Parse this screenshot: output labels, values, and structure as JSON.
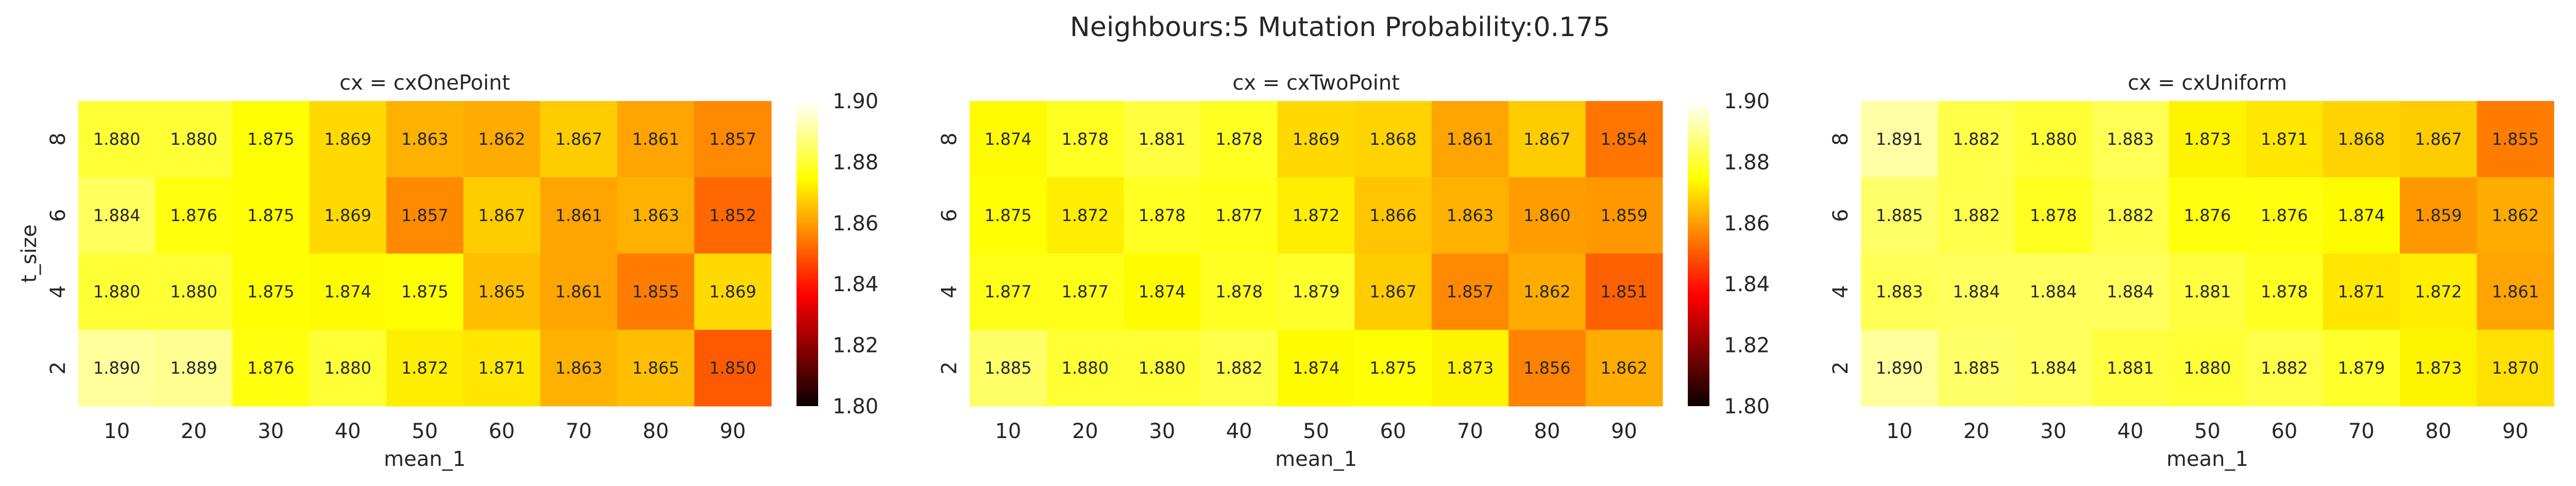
{
  "suptitle": "Neighbours:5 Mutation Probability:0.175",
  "chart_data": {
    "type": "heatmap",
    "colormap": "hot",
    "x_categories": [
      "10",
      "20",
      "30",
      "40",
      "50",
      "60",
      "70",
      "80",
      "90"
    ],
    "y_categories": [
      "8",
      "6",
      "4",
      "2"
    ],
    "colorbar_ticks": [
      "1.90",
      "1.88",
      "1.86",
      "1.84",
      "1.82",
      "1.80"
    ],
    "vmin": 1.8,
    "vmax": 1.9,
    "panels": [
      {
        "title": "cx = cxOnePoint",
        "xlabel": "mean_1",
        "ylabel": "t_size",
        "values": [
          [
            1.88,
            1.88,
            1.875,
            1.869,
            1.863,
            1.862,
            1.867,
            1.861,
            1.857
          ],
          [
            1.884,
            1.876,
            1.875,
            1.869,
            1.857,
            1.867,
            1.861,
            1.863,
            1.852
          ],
          [
            1.88,
            1.88,
            1.875,
            1.874,
            1.875,
            1.865,
            1.861,
            1.855,
            1.869
          ],
          [
            1.89,
            1.889,
            1.876,
            1.88,
            1.872,
            1.871,
            1.863,
            1.865,
            1.85
          ]
        ],
        "labels": [
          [
            "1.880",
            "1.880",
            "1.875",
            "1.869",
            "1.863",
            "1.862",
            "1.867",
            "1.861",
            "1.857"
          ],
          [
            "1.884",
            "1.876",
            "1.875",
            "1.869",
            "1.857",
            "1.867",
            "1.861",
            "1.863",
            "1.852"
          ],
          [
            "1.880",
            "1.880",
            "1.875",
            "1.874",
            "1.875",
            "1.865",
            "1.861",
            "1.855",
            "1.869"
          ],
          [
            "1.890",
            "1.889",
            "1.876",
            "1.880",
            "1.872",
            "1.871",
            "1.863",
            "1.865",
            "1.850"
          ]
        ]
      },
      {
        "title": "cx = cxTwoPoint",
        "xlabel": "mean_1",
        "ylabel": "",
        "values": [
          [
            1.874,
            1.878,
            1.881,
            1.878,
            1.869,
            1.868,
            1.861,
            1.867,
            1.854
          ],
          [
            1.875,
            1.872,
            1.878,
            1.877,
            1.872,
            1.866,
            1.863,
            1.86,
            1.859
          ],
          [
            1.877,
            1.877,
            1.874,
            1.878,
            1.879,
            1.867,
            1.857,
            1.862,
            1.851
          ],
          [
            1.885,
            1.88,
            1.88,
            1.882,
            1.874,
            1.875,
            1.873,
            1.856,
            1.862
          ]
        ],
        "labels": [
          [
            "1.874",
            "1.878",
            "1.881",
            "1.878",
            "1.869",
            "1.868",
            "1.861",
            "1.867",
            "1.854"
          ],
          [
            "1.875",
            "1.872",
            "1.878",
            "1.877",
            "1.872",
            "1.866",
            "1.863",
            "1.860",
            "1.859"
          ],
          [
            "1.877",
            "1.877",
            "1.874",
            "1.878",
            "1.879",
            "1.867",
            "1.857",
            "1.862",
            "1.851"
          ],
          [
            "1.885",
            "1.880",
            "1.880",
            "1.882",
            "1.874",
            "1.875",
            "1.873",
            "1.856",
            "1.862"
          ]
        ]
      },
      {
        "title": "cx = cxUniform",
        "xlabel": "mean_1",
        "ylabel": "",
        "values": [
          [
            1.891,
            1.882,
            1.88,
            1.883,
            1.873,
            1.871,
            1.868,
            1.867,
            1.855
          ],
          [
            1.885,
            1.882,
            1.878,
            1.882,
            1.876,
            1.876,
            1.874,
            1.859,
            1.862
          ],
          [
            1.883,
            1.884,
            1.884,
            1.884,
            1.881,
            1.878,
            1.871,
            1.872,
            1.861
          ],
          [
            1.89,
            1.885,
            1.884,
            1.881,
            1.88,
            1.882,
            1.879,
            1.873,
            1.87
          ]
        ],
        "labels": [
          [
            "1.891",
            "1.882",
            "1.880",
            "1.883",
            "1.873",
            "1.871",
            "1.868",
            "1.867",
            "1.855"
          ],
          [
            "1.885",
            "1.882",
            "1.878",
            "1.882",
            "1.876",
            "1.876",
            "1.874",
            "1.859",
            "1.862"
          ],
          [
            "1.883",
            "1.884",
            "1.884",
            "1.884",
            "1.881",
            "1.878",
            "1.871",
            "1.872",
            "1.861"
          ],
          [
            "1.890",
            "1.885",
            "1.884",
            "1.881",
            "1.880",
            "1.882",
            "1.879",
            "1.873",
            "1.870"
          ]
        ]
      }
    ]
  }
}
